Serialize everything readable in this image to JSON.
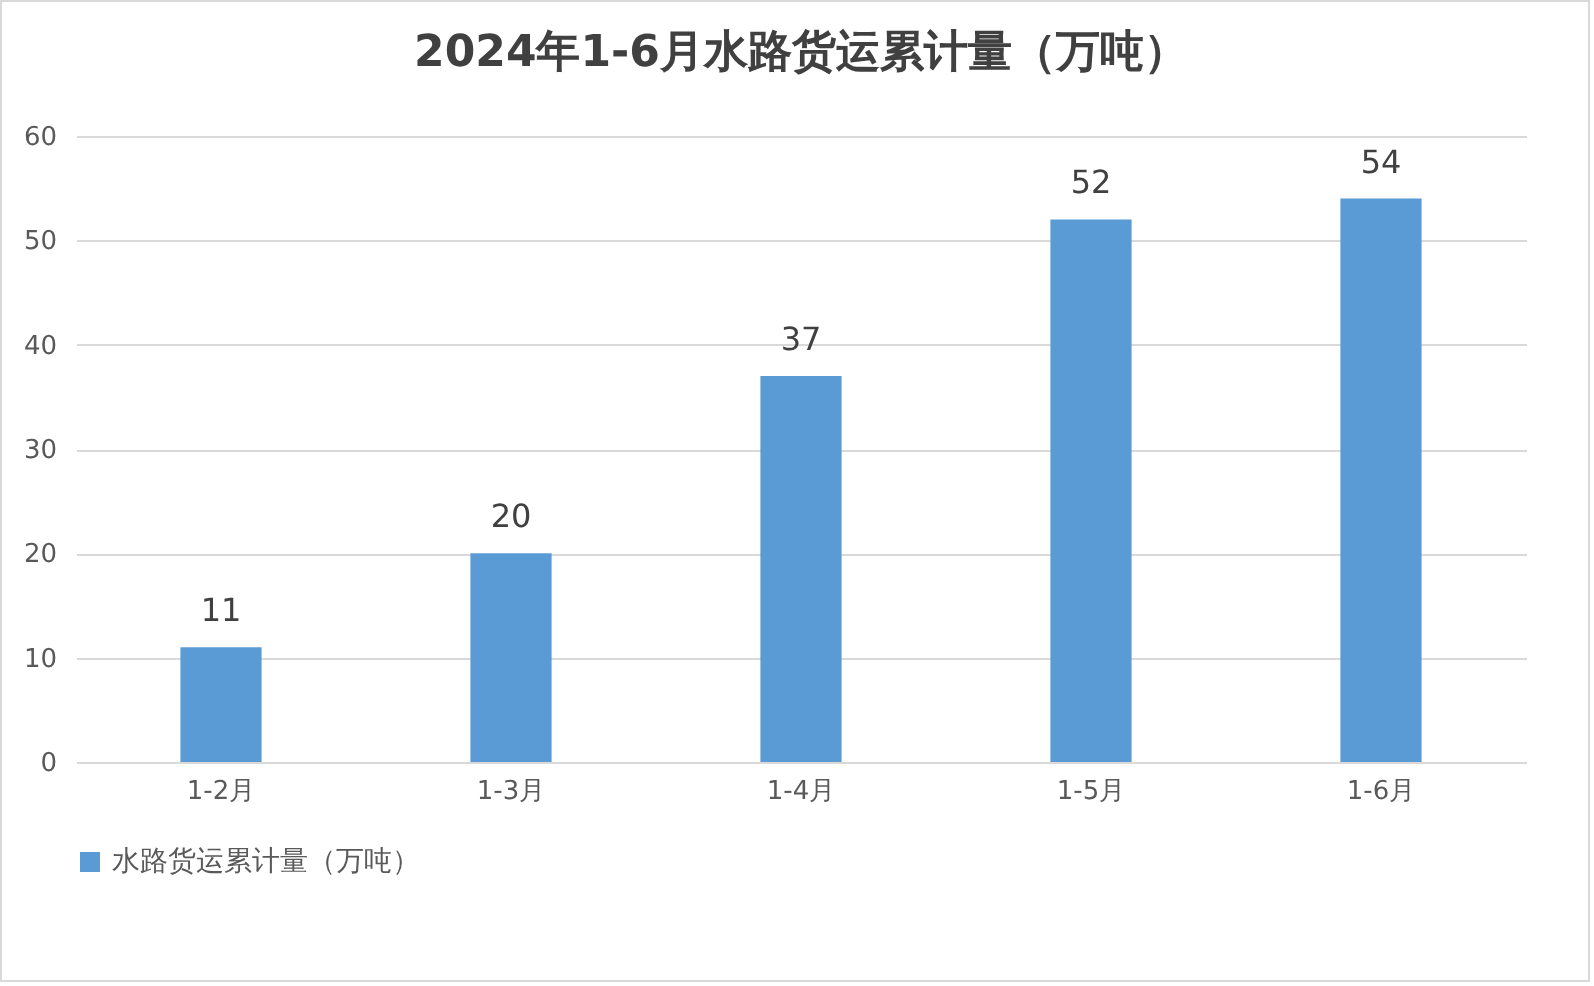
{
  "chart_data": {
    "type": "bar",
    "title": "2024年1-6月水路货运累计量（万吨）",
    "categories": [
      "1-2月",
      "1-3月",
      "1-4月",
      "1-5月",
      "1-6月"
    ],
    "series": [
      {
        "name": "水路货运累计量（万吨）",
        "color": "#5b9bd5",
        "values": [
          11,
          20,
          37,
          52,
          54
        ]
      }
    ],
    "ylim": [
      0,
      60
    ],
    "yticks": [
      0,
      10,
      20,
      30,
      40,
      50,
      60
    ],
    "grid": "y",
    "legend": "bottom",
    "data_labels": true
  }
}
